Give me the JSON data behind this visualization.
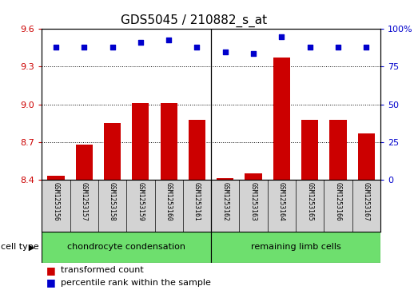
{
  "title": "GDS5045 / 210882_s_at",
  "samples": [
    "GSM1253156",
    "GSM1253157",
    "GSM1253158",
    "GSM1253159",
    "GSM1253160",
    "GSM1253161",
    "GSM1253162",
    "GSM1253163",
    "GSM1253164",
    "GSM1253165",
    "GSM1253166",
    "GSM1253167"
  ],
  "transformed_count": [
    8.43,
    8.68,
    8.85,
    9.01,
    9.01,
    8.88,
    8.41,
    8.45,
    9.37,
    8.88,
    8.88,
    8.77
  ],
  "percentile_rank": [
    88,
    88,
    88,
    91,
    93,
    88,
    85,
    84,
    95,
    88,
    88,
    88
  ],
  "ylim_left": [
    8.4,
    9.6
  ],
  "ylim_right": [
    0,
    100
  ],
  "yticks_left": [
    8.4,
    8.7,
    9.0,
    9.3,
    9.6
  ],
  "yticks_right": [
    0,
    25,
    50,
    75,
    100
  ],
  "bar_color": "#cc0000",
  "dot_color": "#0000cc",
  "cell_types": [
    {
      "label": "chondrocyte condensation",
      "start": 0,
      "end": 6,
      "color": "#6edf6e"
    },
    {
      "label": "remaining limb cells",
      "start": 6,
      "end": 12,
      "color": "#6edf6e"
    }
  ],
  "group_boundary": 6,
  "legend_bar_label": "transformed count",
  "legend_dot_label": "percentile rank within the sample",
  "cell_type_label": "cell type",
  "sample_box_color": "#d3d3d3",
  "left_tick_color": "#cc0000",
  "right_tick_color": "#0000cc",
  "title_fontsize": 11,
  "tick_fontsize": 8,
  "label_fontsize": 7.5,
  "bar_width": 0.6
}
